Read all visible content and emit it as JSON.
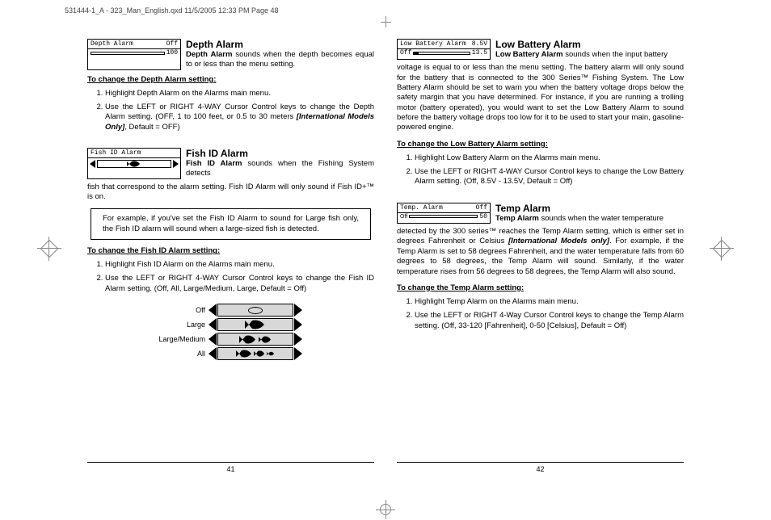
{
  "header_line": "531444-1_A - 323_Man_English.qxd  11/5/2005  12:33 PM  Page 48",
  "left": {
    "page_number": "41",
    "depth": {
      "menu_title": "Depth Alarm",
      "menu_val": "Off",
      "bar_label": "100",
      "heading": "Depth Alarm",
      "intro_bold": "Depth Alarm",
      "intro_rest": " sounds when the depth becomes equal to or less than the menu setting.",
      "howto_head": "To change the Depth Alarm setting:",
      "step1": "Highlight Depth Alarm on the Alarms main menu.",
      "step2a": "Use the LEFT or RIGHT 4-WAY Cursor Control keys to change the Depth Alarm setting. (OFF, 1 to 100 feet, or 0.5 to 30 meters ",
      "step2b_italic": "[International Models Only]",
      "step2c": ", Default = OFF)"
    },
    "fishid": {
      "menu_title": "Fish ID Alarm",
      "heading": "Fish ID Alarm",
      "intro_bold": "Fish ID Alarm",
      "intro_rest": " sounds when the Fishing System detects fish that correspond to the alarm setting. Fish ID Alarm will only sound if Fish ID+™ is on.",
      "example": "For example, if you've set the Fish ID Alarm to sound for Large fish only, the Fish ID alarm will sound when a large-sized fish is detected.",
      "howto_head": "To change the Fish ID Alarm setting:",
      "step1": "Highlight Fish ID Alarm on the Alarms main menu.",
      "step2": "Use the LEFT or RIGHT 4-WAY Cursor Control keys to change the Fish ID Alarm setting. (Off, All, Large/Medium, Large, Default = Off)",
      "opt1": "Off",
      "opt2": "Large",
      "opt3": "Large/Medium",
      "opt4": "All"
    }
  },
  "right": {
    "page_number": "42",
    "battery": {
      "menu_title": "Low Battery Alarm",
      "menu_val": "8.5V",
      "bar_left": "Off",
      "bar_right": "13.5",
      "heading": "Low Battery Alarm",
      "intro_bold": "Low Battery Alarm",
      "intro_rest": " sounds when the input battery voltage is equal to or less than the menu setting. The battery alarm will only sound for the battery that is connected to the 300 Series™ Fishing System. The Low Battery Alarm should be set to warn you when the battery voltage drops below the safety margin that you have determined. For instance, if you are running a trolling motor (battery operated), you would want to set the Low Battery Alarm to sound before the battery voltage drops too low for it to be used to start your main, gasoline-powered engine.",
      "howto_head": "To change the Low Battery Alarm setting:",
      "step1": "Highlight Low Battery Alarm on the Alarms main menu.",
      "step2": "Use the LEFT or RIGHT 4-WAY Cursor Control keys to change the Low Battery Alarm setting. (Off, 8.5V - 13.5V,  Default = Off)"
    },
    "temp": {
      "menu_title": "Temp. Alarm",
      "menu_val": "Off",
      "bar_right": "50",
      "heading": "Temp Alarm",
      "intro_bold": "Temp Alarm",
      "intro_rest": " sounds when the water temperature detected by the 300 series™ reaches the Temp Alarm setting, which is either set in degrees Fahrenheit or Celsius ",
      "intro_italic": "[International Models only]",
      "intro_rest2": ". For example, if the Temp Alarm is set to 58 degrees Fahrenheit, and the water temperature falls from 60 degrees to 58 degrees, the Temp Alarm will sound. Similarly, if the water temperature rises from 56 degrees to 58 degrees, the Temp Alarm will also sound.",
      "howto_head": "To change the Temp Alarm setting:",
      "step1": "Highlight Temp Alarm on the Alarms main menu.",
      "step2": "Use the LEFT or RIGHT 4-Way Cursor Control keys to change the Temp Alarm setting. (Off, 33-120 [Fahrenheit], 0-50 [Celsius], Default = Off)"
    }
  }
}
